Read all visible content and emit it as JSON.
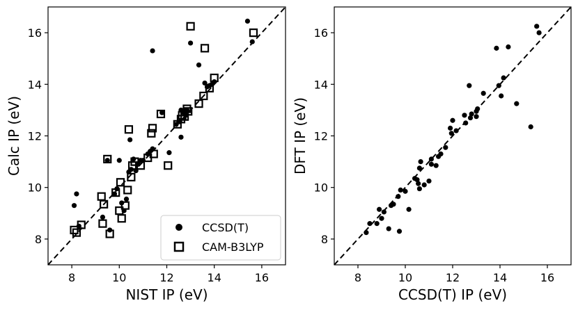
{
  "chart_data": [
    {
      "type": "scatter",
      "title": "",
      "xlabel": "NIST IP (eV)",
      "ylabel": "Calc IP (eV)",
      "xlim": [
        7,
        17
      ],
      "ylim": [
        7,
        17
      ],
      "xticks": [
        8,
        10,
        12,
        14,
        16
      ],
      "yticks": [
        8,
        10,
        12,
        14,
        16
      ],
      "diagonal": "dashed y = x",
      "legend_position": "lower-right",
      "series": [
        {
          "name": "CCSD(T)",
          "marker": "filled-circle",
          "points": [
            [
              8.1,
              9.3
            ],
            [
              8.2,
              9.75
            ],
            [
              8.3,
              8.5
            ],
            [
              9.3,
              8.85
            ],
            [
              9.5,
              11.05
            ],
            [
              9.6,
              8.35
            ],
            [
              9.8,
              9.75
            ],
            [
              9.9,
              9.95
            ],
            [
              10.0,
              11.05
            ],
            [
              10.1,
              9.4
            ],
            [
              10.2,
              9.1
            ],
            [
              10.3,
              9.55
            ],
            [
              10.4,
              10.6
            ],
            [
              10.45,
              11.85
            ],
            [
              10.5,
              10.7
            ],
            [
              10.6,
              11.1
            ],
            [
              10.7,
              10.65
            ],
            [
              10.8,
              10.9
            ],
            [
              10.9,
              11.05
            ],
            [
              11.0,
              11.05
            ],
            [
              11.2,
              11.3
            ],
            [
              11.3,
              11.4
            ],
            [
              11.4,
              11.5
            ],
            [
              11.4,
              15.3
            ],
            [
              11.8,
              12.9
            ],
            [
              12.1,
              11.35
            ],
            [
              12.4,
              12.45
            ],
            [
              12.55,
              12.55
            ],
            [
              12.6,
              11.95
            ],
            [
              12.6,
              13.0
            ],
            [
              12.7,
              12.9
            ],
            [
              12.8,
              12.8
            ],
            [
              12.85,
              13.0
            ],
            [
              13.0,
              15.6
            ],
            [
              13.35,
              14.75
            ],
            [
              13.6,
              14.05
            ],
            [
              13.7,
              13.9
            ],
            [
              13.8,
              13.95
            ],
            [
              13.9,
              14.0
            ],
            [
              14.0,
              14.1
            ],
            [
              15.4,
              16.45
            ],
            [
              15.6,
              15.65
            ]
          ]
        },
        {
          "name": "CAM-B3LYP",
          "marker": "open-square",
          "points": [
            [
              8.1,
              8.35
            ],
            [
              8.2,
              8.25
            ],
            [
              8.4,
              8.55
            ],
            [
              9.25,
              9.65
            ],
            [
              9.35,
              9.35
            ],
            [
              9.3,
              8.6
            ],
            [
              9.5,
              11.1
            ],
            [
              9.6,
              8.2
            ],
            [
              9.85,
              9.8
            ],
            [
              10.0,
              9.1
            ],
            [
              10.05,
              10.2
            ],
            [
              10.1,
              8.8
            ],
            [
              10.25,
              9.3
            ],
            [
              10.35,
              9.9
            ],
            [
              10.4,
              12.25
            ],
            [
              10.5,
              10.4
            ],
            [
              10.55,
              10.85
            ],
            [
              10.65,
              11.0
            ],
            [
              10.9,
              10.85
            ],
            [
              11.2,
              11.15
            ],
            [
              11.35,
              12.1
            ],
            [
              11.4,
              12.3
            ],
            [
              11.45,
              11.3
            ],
            [
              11.75,
              12.85
            ],
            [
              12.05,
              10.85
            ],
            [
              12.45,
              12.45
            ],
            [
              12.6,
              12.65
            ],
            [
              12.65,
              12.8
            ],
            [
              12.75,
              12.75
            ],
            [
              12.85,
              13.05
            ],
            [
              12.9,
              12.95
            ],
            [
              13.0,
              16.25
            ],
            [
              13.35,
              13.25
            ],
            [
              13.55,
              13.55
            ],
            [
              13.6,
              15.4
            ],
            [
              13.8,
              13.85
            ],
            [
              14.0,
              14.25
            ],
            [
              15.65,
              16.0
            ]
          ]
        }
      ]
    },
    {
      "type": "scatter",
      "title": "",
      "xlabel": "CCSD(T) IP (eV)",
      "ylabel": "DFT IP (eV)",
      "xlim": [
        7,
        17
      ],
      "ylim": [
        7,
        17
      ],
      "xticks": [
        8,
        10,
        12,
        14,
        16
      ],
      "yticks": [
        8,
        10,
        12,
        14,
        16
      ],
      "diagonal": "dashed y = x",
      "series": [
        {
          "name": "DFT",
          "marker": "filled-circle",
          "points": [
            [
              8.35,
              8.25
            ],
            [
              8.5,
              8.6
            ],
            [
              8.8,
              8.6
            ],
            [
              8.9,
              9.15
            ],
            [
              9.0,
              8.8
            ],
            [
              9.1,
              9.05
            ],
            [
              9.3,
              8.4
            ],
            [
              9.4,
              9.3
            ],
            [
              9.5,
              9.35
            ],
            [
              9.7,
              9.65
            ],
            [
              9.8,
              9.9
            ],
            [
              9.75,
              8.3
            ],
            [
              10.0,
              9.85
            ],
            [
              10.15,
              9.15
            ],
            [
              10.4,
              10.35
            ],
            [
              10.5,
              10.3
            ],
            [
              10.55,
              10.15
            ],
            [
              10.6,
              9.95
            ],
            [
              10.6,
              10.75
            ],
            [
              10.65,
              11.0
            ],
            [
              10.8,
              10.1
            ],
            [
              11.0,
              10.25
            ],
            [
              11.1,
              10.9
            ],
            [
              11.1,
              11.1
            ],
            [
              11.3,
              10.85
            ],
            [
              11.4,
              11.2
            ],
            [
              11.5,
              11.3
            ],
            [
              11.7,
              11.55
            ],
            [
              11.9,
              12.3
            ],
            [
              11.95,
              12.1
            ],
            [
              12.0,
              12.6
            ],
            [
              12.15,
              12.2
            ],
            [
              12.5,
              12.8
            ],
            [
              12.55,
              12.5
            ],
            [
              12.7,
              13.95
            ],
            [
              12.75,
              12.7
            ],
            [
              12.8,
              12.85
            ],
            [
              13.0,
              12.75
            ],
            [
              13.05,
              13.05
            ],
            [
              13.0,
              12.95
            ],
            [
              13.3,
              13.65
            ],
            [
              13.85,
              15.4
            ],
            [
              13.95,
              13.95
            ],
            [
              14.05,
              13.55
            ],
            [
              14.15,
              14.25
            ],
            [
              14.35,
              15.45
            ],
            [
              14.7,
              13.25
            ],
            [
              15.3,
              12.35
            ],
            [
              15.55,
              16.25
            ],
            [
              15.65,
              16.0
            ]
          ]
        }
      ]
    }
  ]
}
